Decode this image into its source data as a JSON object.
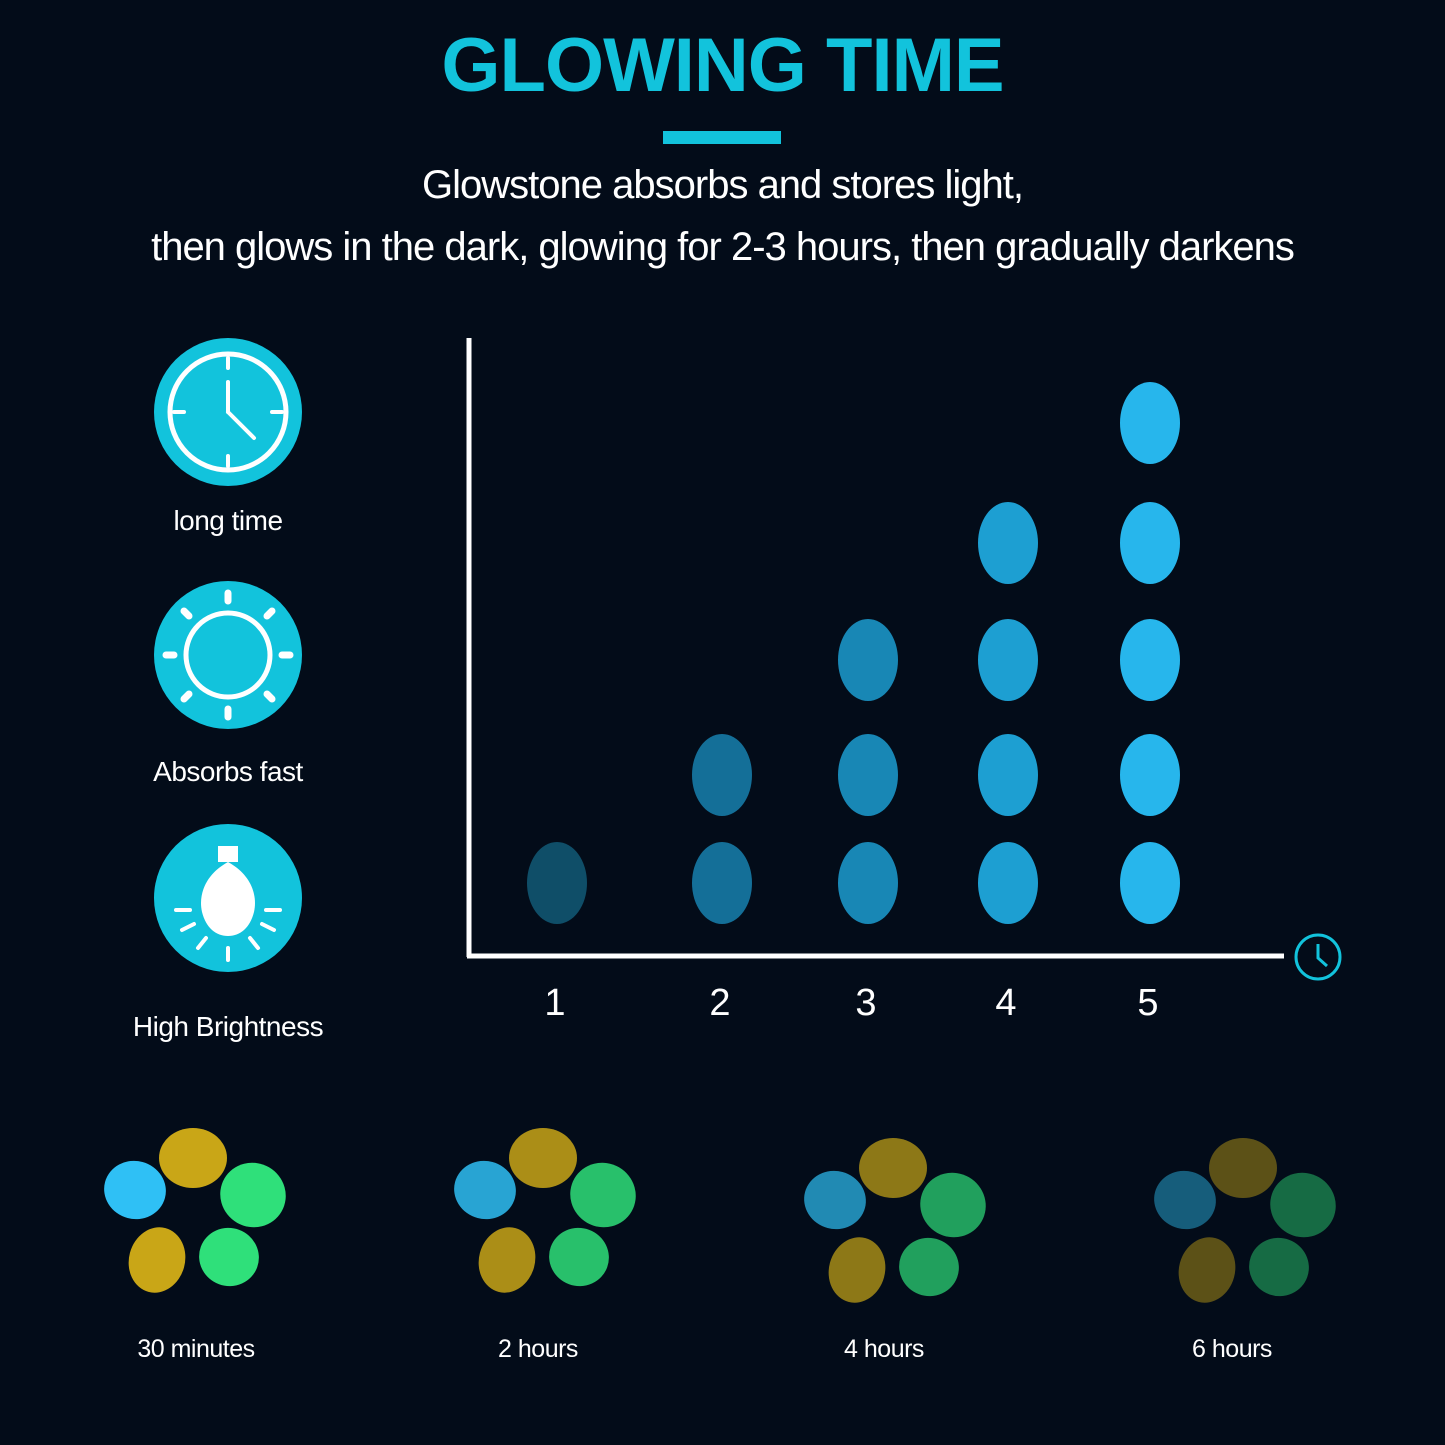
{
  "header": {
    "title": "GLOWING TIME",
    "subtitle_line1": "Glowstone absorbs and stores light,",
    "subtitle_line2": "then glows in the dark, glowing for 2-3 hours, then gradually darkens"
  },
  "features": [
    {
      "icon": "clock-icon",
      "label": "long time"
    },
    {
      "icon": "sun-icon",
      "label": "Absorbs fast"
    },
    {
      "icon": "light-bulb-icon",
      "label": "High Brightness"
    }
  ],
  "chart_data": {
    "type": "pictograph",
    "categories": [
      "1",
      "2",
      "3",
      "4",
      "5"
    ],
    "values": [
      1,
      2,
      3,
      4,
      5
    ],
    "x_axis_icon": "clock-icon",
    "colors": [
      "#0f4e68",
      "#146f98",
      "#1887b5",
      "#1d9fd2",
      "#27b6ec"
    ]
  },
  "time_samples": [
    {
      "label": "30 minutes",
      "brightness": 1.0
    },
    {
      "label": "2 hours",
      "brightness": 0.85
    },
    {
      "label": "4 hours",
      "brightness": 0.7
    },
    {
      "label": "6 hours",
      "brightness": 0.45
    }
  ],
  "colors": {
    "background": "#030c19",
    "accent": "#12c3dc",
    "stone_blue": "#2fc0f5",
    "stone_yellow": "#c9a617",
    "stone_green": "#2fe07a"
  }
}
